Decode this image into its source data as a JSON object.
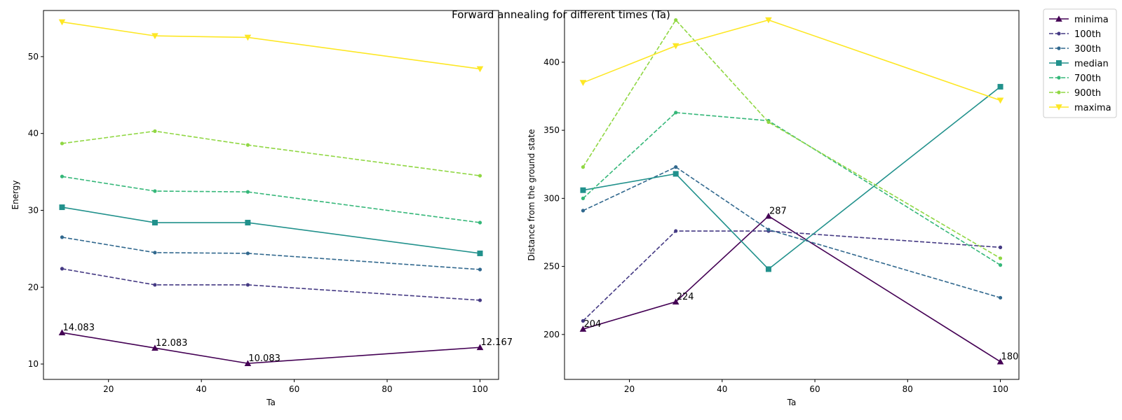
{
  "chart_data": [
    {
      "type": "line",
      "xlabel": "Ta",
      "ylabel": "Energy",
      "xlim": [
        6,
        104
      ],
      "ylim": [
        8,
        56
      ],
      "xticks": [
        20,
        40,
        60,
        80,
        100
      ],
      "yticks": [
        10,
        20,
        30,
        40,
        50
      ],
      "x": [
        10,
        30,
        50,
        100
      ],
      "series": [
        {
          "name": "minima",
          "values": [
            14.083,
            12.083,
            10.083,
            12.167
          ],
          "color": "#440154",
          "dash": "solid",
          "marker": "triangle-up"
        },
        {
          "name": "100th",
          "values": [
            22.4,
            20.3,
            20.3,
            18.3
          ],
          "color": "#443983",
          "dash": "dashed",
          "marker": "dot"
        },
        {
          "name": "300th",
          "values": [
            26.5,
            24.5,
            24.4,
            22.3
          ],
          "color": "#31688e",
          "dash": "dashed",
          "marker": "dot"
        },
        {
          "name": "median",
          "values": [
            30.4,
            28.4,
            28.4,
            24.4
          ],
          "color": "#21918c",
          "dash": "solid",
          "marker": "square"
        },
        {
          "name": "700th",
          "values": [
            34.4,
            32.5,
            32.4,
            28.4
          ],
          "color": "#35b779",
          "dash": "dashed",
          "marker": "dot"
        },
        {
          "name": "900th",
          "values": [
            38.7,
            40.3,
            38.5,
            34.5
          ],
          "color": "#90d743",
          "dash": "dashed",
          "marker": "dot"
        },
        {
          "name": "maxima",
          "values": [
            54.5,
            52.7,
            52.5,
            48.4
          ],
          "color": "#fde725",
          "dash": "solid",
          "marker": "triangle-down"
        }
      ],
      "annotations": [
        {
          "x": 10,
          "y": 14.083,
          "text": "14.083"
        },
        {
          "x": 30,
          "y": 12.083,
          "text": "12.083"
        },
        {
          "x": 50,
          "y": 10.083,
          "text": "10.083"
        },
        {
          "x": 100,
          "y": 12.167,
          "text": "12.167"
        }
      ]
    },
    {
      "type": "line",
      "xlabel": "Ta",
      "ylabel": "Distance from the ground state",
      "xlim": [
        6,
        104
      ],
      "ylim": [
        167,
        438
      ],
      "xticks": [
        20,
        40,
        60,
        80,
        100
      ],
      "yticks": [
        200,
        250,
        300,
        350,
        400
      ],
      "x": [
        10,
        30,
        50,
        100
      ],
      "series": [
        {
          "name": "minima",
          "values": [
            204,
            224,
            287,
            180
          ],
          "color": "#440154",
          "dash": "solid",
          "marker": "triangle-up"
        },
        {
          "name": "100th",
          "values": [
            210,
            276,
            276,
            264
          ],
          "color": "#443983",
          "dash": "dashed",
          "marker": "dot"
        },
        {
          "name": "300th",
          "values": [
            291,
            323,
            277,
            227
          ],
          "color": "#31688e",
          "dash": "dashed",
          "marker": "dot"
        },
        {
          "name": "median",
          "values": [
            306,
            318,
            248,
            382
          ],
          "color": "#21918c",
          "dash": "solid",
          "marker": "square"
        },
        {
          "name": "700th",
          "values": [
            300,
            363,
            357,
            251
          ],
          "color": "#35b779",
          "dash": "dashed",
          "marker": "dot"
        },
        {
          "name": "900th",
          "values": [
            323,
            431,
            356,
            256
          ],
          "color": "#90d743",
          "dash": "dashed",
          "marker": "dot"
        },
        {
          "name": "maxima",
          "values": [
            385,
            412,
            431,
            372
          ],
          "color": "#fde725",
          "dash": "solid",
          "marker": "triangle-down"
        }
      ],
      "annotations": [
        {
          "x": 10,
          "y": 204,
          "text": "204"
        },
        {
          "x": 30,
          "y": 224,
          "text": "224"
        },
        {
          "x": 50,
          "y": 287,
          "text": "287"
        },
        {
          "x": 100,
          "y": 180,
          "text": "180"
        }
      ]
    }
  ],
  "figure": {
    "suptitle": "Forward annealing for different times (Ta)",
    "legend_placement": "outside-upper-right",
    "legend": [
      {
        "label": "minima",
        "color": "#440154",
        "dash": "solid",
        "marker": "triangle-up"
      },
      {
        "label": "100th",
        "color": "#443983",
        "dash": "dashed",
        "marker": "dot"
      },
      {
        "label": "300th",
        "color": "#31688e",
        "dash": "dashed",
        "marker": "dot"
      },
      {
        "label": "median",
        "color": "#21918c",
        "dash": "solid",
        "marker": "square"
      },
      {
        "label": "700th",
        "color": "#35b779",
        "dash": "dashed",
        "marker": "dot"
      },
      {
        "label": "900th",
        "color": "#90d743",
        "dash": "dashed",
        "marker": "dot"
      },
      {
        "label": "maxima",
        "color": "#fde725",
        "dash": "solid",
        "marker": "triangle-down"
      }
    ]
  }
}
